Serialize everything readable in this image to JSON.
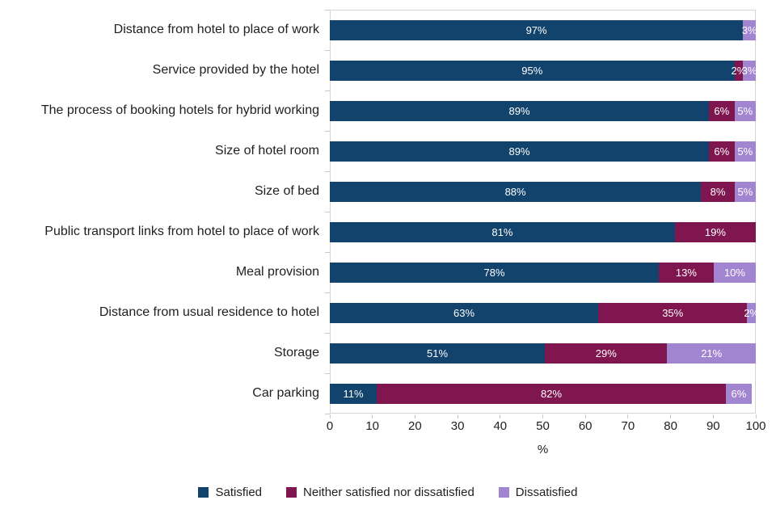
{
  "chart_data": {
    "type": "bar",
    "orientation": "horizontal",
    "stacked": true,
    "title": "",
    "xlabel": "%",
    "ylabel": "",
    "xlim": [
      0,
      100
    ],
    "xticks": [
      0,
      10,
      20,
      30,
      40,
      50,
      60,
      70,
      80,
      90,
      100
    ],
    "grid": false,
    "legend_position": "bottom",
    "categories": [
      "Distance from hotel to place of work",
      "Service provided by the hotel",
      "The process of booking hotels for hybrid working",
      "Size of hotel room",
      "Size of bed",
      "Public transport links from hotel to place of work",
      "Meal provision",
      "Distance from usual residence to hotel",
      "Storage",
      "Car parking"
    ],
    "series": [
      {
        "name": "Satisfied",
        "color": "#12436D",
        "values": [
          97,
          95,
          89,
          89,
          88,
          81,
          78,
          63,
          51,
          11
        ]
      },
      {
        "name": "Neither satisfied nor dissatisfied",
        "color": "#801650",
        "values": [
          0,
          2,
          6,
          6,
          8,
          19,
          13,
          35,
          29,
          82
        ]
      },
      {
        "name": "Dissatisfied",
        "color": "#A285D1",
        "values": [
          3,
          3,
          5,
          5,
          5,
          0,
          10,
          2,
          21,
          6
        ]
      }
    ]
  }
}
